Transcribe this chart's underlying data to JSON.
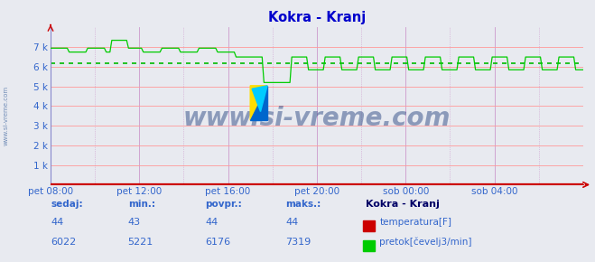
{
  "title": "Kokra - Kranj",
  "title_color": "#0000cc",
  "bg_color": "#e8eaf0",
  "plot_bg_color": "#e8eaf0",
  "grid_color_h": "#ff9999",
  "grid_color_v": "#cc99cc",
  "avg_line_color": "#00bb00",
  "flow_avg": 6176,
  "flow_min": 5221,
  "flow_max": 7319,
  "flow_current": 6022,
  "temp_current": 44,
  "temp_min": 43,
  "temp_avg": 44,
  "temp_max": 44,
  "ylim": [
    0,
    8000
  ],
  "yticks": [
    0,
    1000,
    2000,
    3000,
    4000,
    5000,
    6000,
    7000
  ],
  "ytick_labels": [
    "",
    "1 k",
    "2 k",
    "3 k",
    "4 k",
    "5 k",
    "6 k",
    "7 k"
  ],
  "xtick_labels": [
    "pet 08:00",
    "pet 12:00",
    "pet 16:00",
    "pet 20:00",
    "sob 00:00",
    "sob 04:00"
  ],
  "xtick_positions": [
    0,
    240,
    480,
    720,
    960,
    1200
  ],
  "total_points": 1440,
  "line_color": "#00cc00",
  "temp_line_color": "#cc0000",
  "axis_color": "#cc0000",
  "watermark": "www.si-vreme.com",
  "watermark_color": "#1a3a7a",
  "watermark_alpha": 0.45,
  "legend_title": "Kokra - Kranj",
  "legend_title_color": "#000066",
  "legend_color": "#3366cc",
  "table_header_color": "#3366cc",
  "table_value_color": "#3366cc",
  "sedaj_label": "sedaj:",
  "min_label": "min.:",
  "povpr_label": "povpr.:",
  "maks_label": "maks.:",
  "temp_label": "temperatura[F]",
  "flow_label": "pretok[čevelj3/min]",
  "temp_color_box": "#cc0000",
  "flow_color_box": "#00cc00"
}
